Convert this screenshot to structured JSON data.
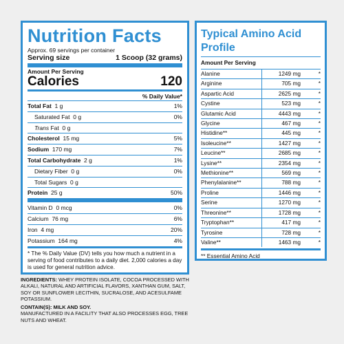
{
  "nutrition": {
    "title": "Nutrition Facts",
    "servings": "Approx. 69 servings per container",
    "serving_size_label": "Serving size",
    "serving_size_value": "1 Scoop (32 grams)",
    "amount_per_serving": "Amount Per Serving",
    "calories_label": "Calories",
    "calories_value": "120",
    "dv_header": "% Daily Value*",
    "rows": [
      {
        "label": "Total Fat",
        "amount": "1 g",
        "dv": "1%",
        "bold": true,
        "indent": false
      },
      {
        "label": "Saturated Fat",
        "amount": "0 g",
        "dv": "0%",
        "bold": false,
        "indent": true
      },
      {
        "label": "Trans",
        "label_suffix": " Fat",
        "amount": "0 g",
        "dv": "",
        "bold": false,
        "indent": true,
        "italic": true
      },
      {
        "label": "Cholesterol",
        "amount": "15 mg",
        "dv": "5%",
        "bold": true,
        "indent": false
      },
      {
        "label": "Sodium",
        "amount": "170 mg",
        "dv": "7%",
        "bold": true,
        "indent": false
      },
      {
        "label": "Total Carbohydrate",
        "amount": "2 g",
        "dv": "1%",
        "bold": true,
        "indent": false
      },
      {
        "label": "Dietary Fiber",
        "amount": "0 g",
        "dv": "0%",
        "bold": false,
        "indent": true
      },
      {
        "label": "Total Sugars",
        "amount": "0 g",
        "dv": "",
        "bold": false,
        "indent": true
      },
      {
        "label": "Protein",
        "amount": "25 g",
        "dv": "50%",
        "bold": true,
        "indent": false
      }
    ],
    "minerals": [
      {
        "label": "Vitamin D",
        "amount": "0 mcg",
        "dv": "0%"
      },
      {
        "label": "Calcium",
        "amount": "76 mg",
        "dv": "6%"
      },
      {
        "label": "Iron",
        "amount": "4 mg",
        "dv": "20%"
      },
      {
        "label": "Potassium",
        "amount": "164 mg",
        "dv": "4%"
      }
    ],
    "footnote": "* The % Daily Value (DV) tells you how much a nutrient in a serving of food contributes to a daily diet. 2,000 calories a day is used for general nutrition advice."
  },
  "ingredients": {
    "label": "INGREDIENTS:",
    "text": " WHEY PROTEIN ISOLATE, COCOA PROCESSED WITH ALKALI, NATURAL AND ARTIFICIAL FLAVORS, XANTHAN GUM, SALT, SOY OR SUNFLOWER LECITHIN, SUCRALOSE, AND ACESULFAME POTASSIUM.",
    "contains": "CONTAIN(S): MILK AND SOY.",
    "facility": "MANUFACTURED IN A FACILITY THAT ALSO PROCESSES EGG, TREE NUTS AND WHEAT."
  },
  "amino": {
    "title": "Typical Amino Acid Profile",
    "subtitle": "Amount Per Serving",
    "rows": [
      {
        "name": "Alanine",
        "value": "1249 mg",
        "mark": "*"
      },
      {
        "name": "Arginine",
        "value": "705 mg",
        "mark": "*"
      },
      {
        "name": "Aspartic Acid",
        "value": "2625 mg",
        "mark": "*"
      },
      {
        "name": "Cystine",
        "value": "523 mg",
        "mark": "*"
      },
      {
        "name": "Glutamic Acid",
        "value": "4443 mg",
        "mark": "*"
      },
      {
        "name": "Glycine",
        "value": "467 mg",
        "mark": "*"
      },
      {
        "name": "Histidine**",
        "value": "445 mg",
        "mark": "*"
      },
      {
        "name": "Isoleucine**",
        "value": "1427 mg",
        "mark": "*"
      },
      {
        "name": "Leucine**",
        "value": "2685 mg",
        "mark": "*"
      },
      {
        "name": "Lysine**",
        "value": "2354 mg",
        "mark": "*"
      },
      {
        "name": "Methionine**",
        "value": "569 mg",
        "mark": "*"
      },
      {
        "name": "Phenylalanine**",
        "value": "788 mg",
        "mark": "*"
      },
      {
        "name": "Proline",
        "value": "1446 mg",
        "mark": "*"
      },
      {
        "name": "Serine",
        "value": "1270 mg",
        "mark": "*"
      },
      {
        "name": "Threonine**",
        "value": "1728 mg",
        "mark": "*"
      },
      {
        "name": "Tryptophan**",
        "value": "417 mg",
        "mark": "*"
      },
      {
        "name": "Tyrosine",
        "value": "728 mg",
        "mark": "*"
      },
      {
        "name": "Valine**",
        "value": "1463 mg",
        "mark": "*"
      }
    ],
    "footnote": "** Essential Amino Acid"
  }
}
